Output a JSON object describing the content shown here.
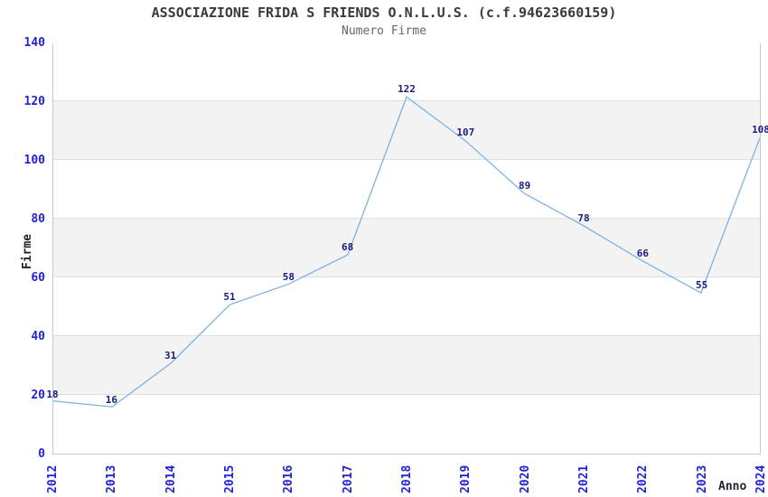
{
  "header": {
    "title": "ASSOCIAZIONE FRIDA S FRIENDS O.N.L.U.S. (c.f.94623660159)",
    "subtitle": "Numero Firme"
  },
  "chart_data": {
    "type": "line",
    "title": "ASSOCIAZIONE FRIDA S FRIENDS O.N.L.U.S. (c.f.94623660159)",
    "subtitle": "Numero Firme",
    "xlabel": "Anno",
    "ylabel": "Firme",
    "categories": [
      "2012",
      "2013",
      "2014",
      "2015",
      "2016",
      "2017",
      "2018",
      "2019",
      "2020",
      "2021",
      "2022",
      "2023",
      "2024"
    ],
    "series": [
      {
        "name": "Numero Firme",
        "values": [
          18,
          16,
          31,
          51,
          58,
          68,
          122,
          107,
          89,
          78,
          66,
          55,
          108
        ]
      }
    ],
    "ylim": [
      0,
      140
    ],
    "ytick_step": 20,
    "yticks": [
      0,
      20,
      40,
      60,
      80,
      100,
      120,
      140
    ],
    "grid": "horizontal-alternating-bands",
    "legend_position": "none",
    "point_labels_visible": true,
    "colors": {
      "line": "#7cb1e3",
      "tick_label": "#2222d6",
      "value_label": "#1a1a7e",
      "band_alt": "#f3f3f3",
      "band_base": "#ffffff",
      "gridline": "#e0e0e0",
      "plot_border": "#c9c9c9",
      "title": "#3a3a3a",
      "subtitle": "#666666",
      "axis_title": "#222233",
      "background": "#ffffff"
    }
  }
}
